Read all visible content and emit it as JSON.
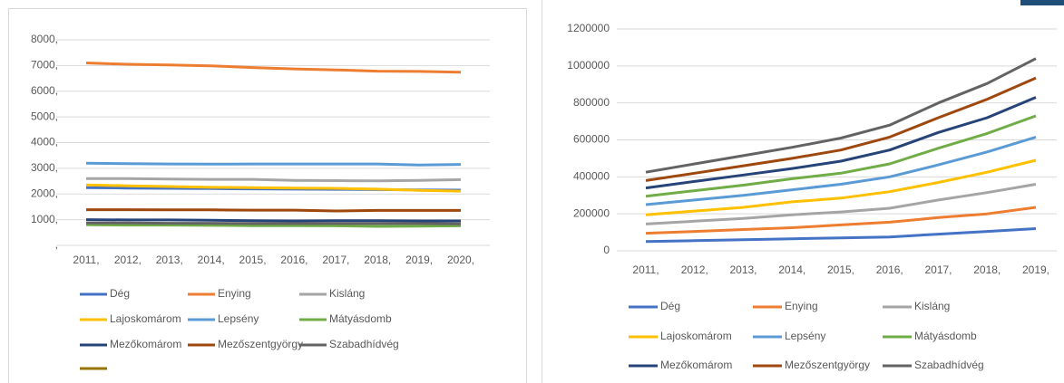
{
  "chart_data": [
    {
      "type": "line",
      "categories": [
        "2011,",
        "2012,",
        "2013,",
        "2014,",
        "2015,",
        "2016,",
        "2017,",
        "2018,",
        "2019,",
        "2020,"
      ],
      "ylim": [
        0,
        8000
      ],
      "yticks": [
        {
          "value": 0,
          "label": ","
        },
        {
          "value": 1000,
          "label": "1000,"
        },
        {
          "value": 2000,
          "label": "2000,"
        },
        {
          "value": 3000,
          "label": "3000,"
        },
        {
          "value": 4000,
          "label": "4000,"
        },
        {
          "value": 5000,
          "label": "5000,"
        },
        {
          "value": 6000,
          "label": "6000,"
        },
        {
          "value": 7000,
          "label": "7000,"
        },
        {
          "value": 8000,
          "label": "8000,"
        }
      ],
      "grid": true,
      "legend": "bottom",
      "series": [
        {
          "name": "Dég",
          "color": "#4472c4",
          "values": [
            2250,
            2230,
            2220,
            2210,
            2200,
            2190,
            2180,
            2170,
            2160,
            2150
          ]
        },
        {
          "name": "Enying",
          "color": "#ed7d31",
          "values": [
            7100,
            7050,
            7020,
            6990,
            6920,
            6870,
            6830,
            6780,
            6770,
            6740
          ]
        },
        {
          "name": "Kisláng",
          "color": "#a5a5a5",
          "values": [
            2600,
            2600,
            2580,
            2570,
            2570,
            2530,
            2520,
            2510,
            2530,
            2560
          ]
        },
        {
          "name": "Lajoskomárom",
          "color": "#ffc000",
          "values": [
            2350,
            2320,
            2290,
            2260,
            2250,
            2230,
            2220,
            2190,
            2140,
            2110
          ]
        },
        {
          "name": "Lepsény",
          "color": "#5b9bd5",
          "values": [
            3200,
            3180,
            3170,
            3160,
            3170,
            3170,
            3170,
            3170,
            3130,
            3150
          ]
        },
        {
          "name": "Mátyásdomb",
          "color": "#70ad47",
          "values": [
            800,
            790,
            790,
            780,
            770,
            770,
            760,
            740,
            750,
            760
          ]
        },
        {
          "name": "Mezőkomárom",
          "color": "#264478",
          "values": [
            1000,
            990,
            990,
            980,
            960,
            950,
            960,
            960,
            950,
            950
          ]
        },
        {
          "name": "Mezőszentgyörgy",
          "color": "#9e480e",
          "values": [
            1390,
            1390,
            1380,
            1380,
            1370,
            1370,
            1340,
            1360,
            1360,
            1360
          ]
        },
        {
          "name": "Szabadhídvég",
          "color": "#636363",
          "values": [
            870,
            870,
            860,
            860,
            850,
            850,
            850,
            850,
            850,
            840
          ]
        },
        {
          "name": null,
          "color": "#997300",
          "values": [
            null,
            null,
            null,
            null,
            null,
            null,
            null,
            null,
            null,
            null
          ]
        }
      ]
    },
    {
      "type": "line",
      "stacked": true,
      "categories": [
        "2011,",
        "2012,",
        "2013,",
        "2014,",
        "2015,",
        "2016,",
        "2017,",
        "2018,",
        "2019,"
      ],
      "ylim": [
        0,
        1200000
      ],
      "yticks": [
        0,
        200000,
        400000,
        600000,
        800000,
        1000000,
        1200000
      ],
      "grid": true,
      "legend": "bottom",
      "series": [
        {
          "name": "Dég",
          "color": "#4472c4",
          "values": [
            50000,
            55000,
            60000,
            65000,
            70000,
            75000,
            90000,
            105000,
            120000
          ]
        },
        {
          "name": "Enying",
          "color": "#ed7d31",
          "values": [
            45000,
            50000,
            55000,
            60000,
            70000,
            80000,
            90000,
            95000,
            115000
          ]
        },
        {
          "name": "Kisláng",
          "color": "#a5a5a5",
          "values": [
            50000,
            55000,
            60000,
            70000,
            70000,
            75000,
            95000,
            115000,
            125000
          ]
        },
        {
          "name": "Lajoskomárom",
          "color": "#ffc000",
          "values": [
            50000,
            55000,
            60000,
            70000,
            75000,
            90000,
            95000,
            110000,
            130000
          ]
        },
        {
          "name": "Lepsény",
          "color": "#5b9bd5",
          "values": [
            55000,
            60000,
            65000,
            65000,
            75000,
            80000,
            95000,
            110000,
            125000
          ]
        },
        {
          "name": "Mátyásdomb",
          "color": "#70ad47",
          "values": [
            45000,
            50000,
            55000,
            60000,
            60000,
            70000,
            90000,
            100000,
            115000
          ]
        },
        {
          "name": "Mezőkomárom",
          "color": "#264478",
          "values": [
            45000,
            50000,
            55000,
            55000,
            65000,
            75000,
            85000,
            85000,
            100000
          ]
        },
        {
          "name": "Mezőszentgyörgy",
          "color": "#9e480e",
          "values": [
            40000,
            45000,
            50000,
            55000,
            60000,
            70000,
            80000,
            100000,
            105000
          ]
        },
        {
          "name": "Szabadhídvég",
          "color": "#636363",
          "values": [
            45000,
            50000,
            55000,
            60000,
            65000,
            65000,
            80000,
            85000,
            105000
          ]
        }
      ]
    }
  ]
}
